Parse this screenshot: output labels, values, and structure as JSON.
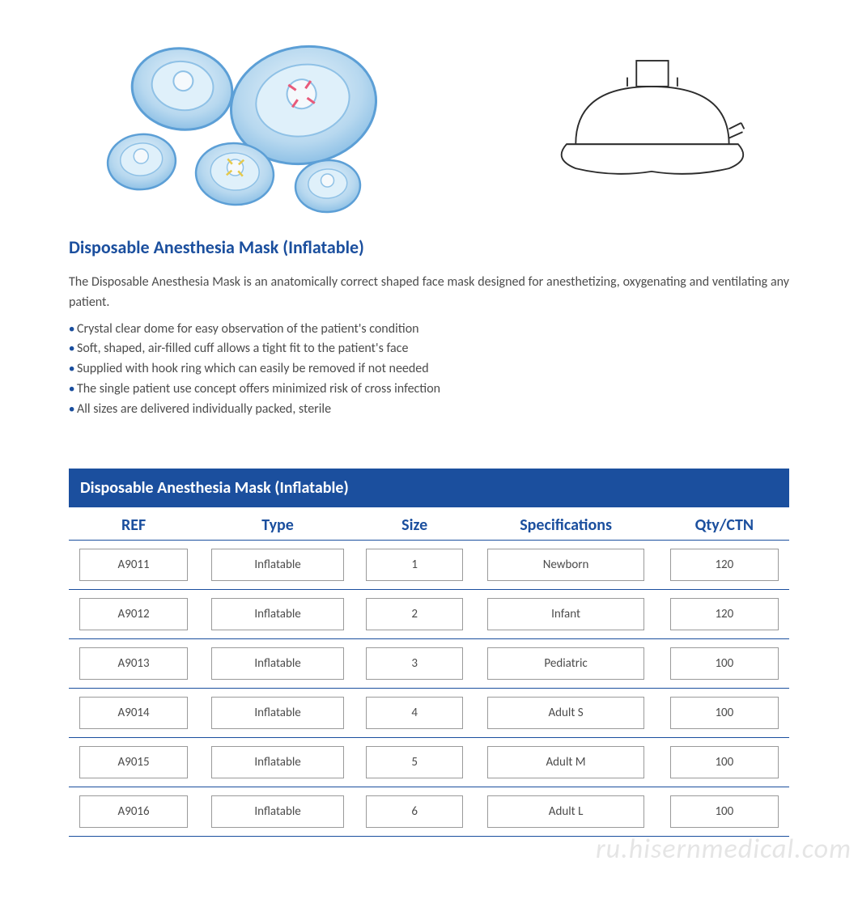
{
  "title": "Disposable Anesthesia Mask (Inflatable)",
  "description": "The Disposable Anesthesia Mask is an anatomically correct shaped face mask designed for anesthetizing, oxygenating and ventilating any patient.",
  "bullets": [
    "Crystal clear dome for easy observation of the patient's condition",
    "Soft, shaped, air-filled cuff allows a tight fit to the patient's face",
    "Supplied with hook ring which can easily be removed if not needed",
    "The single patient use concept offers minimized risk of cross infection",
    "All sizes are delivered individually packed, sterile"
  ],
  "table": {
    "title": "Disposable Anesthesia Mask (Inflatable)",
    "columns": [
      "REF",
      "Type",
      "Size",
      "Specifications",
      "Qty/CTN"
    ],
    "rows": [
      {
        "ref": "A9011",
        "type": "Inflatable",
        "size": "1",
        "spec": "Newborn",
        "qty": "120"
      },
      {
        "ref": "A9012",
        "type": "Inflatable",
        "size": "2",
        "spec": "Infant",
        "qty": "120"
      },
      {
        "ref": "A9013",
        "type": "Inflatable",
        "size": "3",
        "spec": "Pediatric",
        "qty": "100"
      },
      {
        "ref": "A9014",
        "type": "Inflatable",
        "size": "4",
        "spec": "Adult S",
        "qty": "100"
      },
      {
        "ref": "A9015",
        "type": "Inflatable",
        "size": "5",
        "spec": "Adult M",
        "qty": "100"
      },
      {
        "ref": "A9016",
        "type": "Inflatable",
        "size": "6",
        "spec": "Adult L",
        "qty": "100"
      }
    ]
  },
  "colors": {
    "brand_blue": "#1b4f9e",
    "text_gray": "#4c4c4c",
    "border_gray": "#9a9a9a",
    "mask_fill": "#b7d8ef",
    "mask_stroke": "#5c9fd6",
    "watermark": "#e5e5e5"
  },
  "watermark": "ru.hisernmedical.com"
}
